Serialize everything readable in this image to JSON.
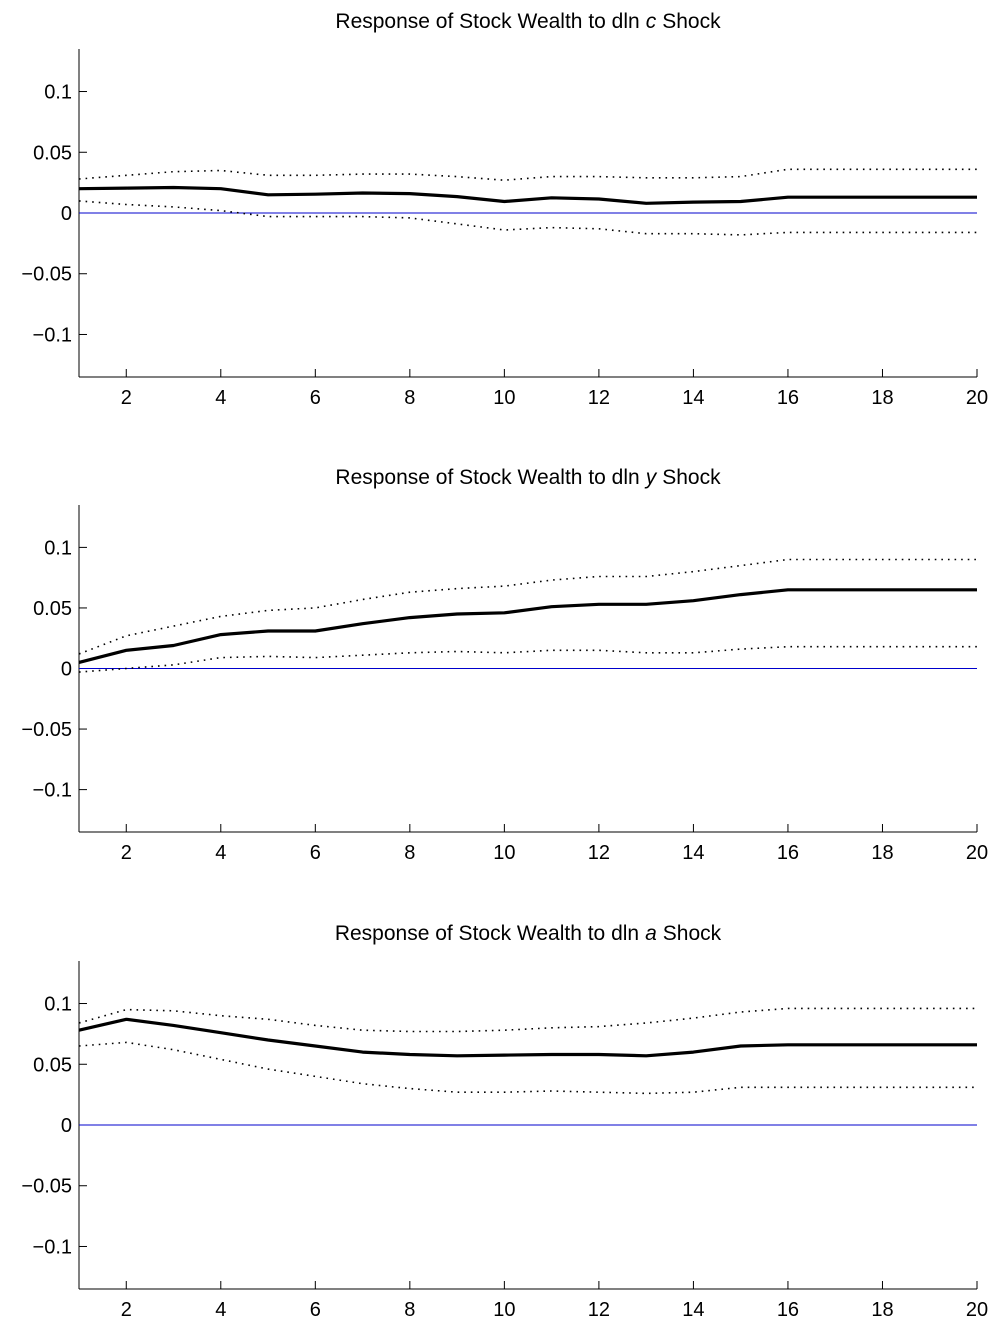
{
  "chart_data": [
    {
      "type": "line",
      "title": "Response of Stock Wealth to dln",
      "title_var": "c",
      "title_suffix": "Shock",
      "xlim": [
        1,
        20
      ],
      "ylim": [
        -0.135,
        0.135
      ],
      "xticks": [
        2,
        4,
        6,
        8,
        10,
        12,
        14,
        16,
        18,
        20
      ],
      "yticks": [
        0.1,
        0.05,
        0,
        -0.05,
        -0.1
      ],
      "ytick_labels": [
        "0.1",
        "0.05",
        "0",
        "−0.05",
        "−0.1"
      ],
      "grid": false,
      "x": [
        1,
        2,
        3,
        4,
        5,
        6,
        7,
        8,
        9,
        10,
        11,
        12,
        13,
        14,
        15,
        16,
        17,
        18,
        19,
        20
      ],
      "series": [
        {
          "role": "response",
          "style": "solid-thick",
          "values": [
            0.02,
            0.0205,
            0.021,
            0.02,
            0.015,
            0.0155,
            0.0165,
            0.016,
            0.0135,
            0.0095,
            0.0125,
            0.0115,
            0.008,
            0.009,
            0.0095,
            0.013,
            0.013,
            0.013,
            0.013,
            0.013
          ]
        },
        {
          "role": "upper",
          "style": "dotted",
          "values": [
            0.028,
            0.031,
            0.034,
            0.035,
            0.031,
            0.031,
            0.032,
            0.032,
            0.03,
            0.027,
            0.03,
            0.03,
            0.029,
            0.029,
            0.03,
            0.036,
            0.036,
            0.036,
            0.036,
            0.036
          ]
        },
        {
          "role": "lower",
          "style": "dotted",
          "values": [
            0.01,
            0.007,
            0.005,
            0.002,
            -0.003,
            -0.003,
            -0.003,
            -0.004,
            -0.009,
            -0.014,
            -0.012,
            -0.013,
            -0.017,
            -0.017,
            -0.018,
            -0.016,
            -0.016,
            -0.016,
            -0.016,
            -0.016
          ]
        },
        {
          "role": "zero",
          "style": "solid-thin-blue",
          "color": "#0000cc",
          "values": [
            0,
            0,
            0,
            0,
            0,
            0,
            0,
            0,
            0,
            0,
            0,
            0,
            0,
            0,
            0,
            0,
            0,
            0,
            0,
            0
          ]
        }
      ]
    },
    {
      "type": "line",
      "title": "Response of Stock Wealth to dln",
      "title_var": "y",
      "title_suffix": "Shock",
      "xlim": [
        1,
        20
      ],
      "ylim": [
        -0.135,
        0.135
      ],
      "xticks": [
        2,
        4,
        6,
        8,
        10,
        12,
        14,
        16,
        18,
        20
      ],
      "yticks": [
        0.1,
        0.05,
        0,
        -0.05,
        -0.1
      ],
      "ytick_labels": [
        "0.1",
        "0.05",
        "0",
        "−0.05",
        "−0.1"
      ],
      "grid": false,
      "x": [
        1,
        2,
        3,
        4,
        5,
        6,
        7,
        8,
        9,
        10,
        11,
        12,
        13,
        14,
        15,
        16,
        17,
        18,
        19,
        20
      ],
      "series": [
        {
          "role": "response",
          "style": "solid-thick",
          "values": [
            0.005,
            0.015,
            0.019,
            0.028,
            0.031,
            0.031,
            0.037,
            0.042,
            0.045,
            0.046,
            0.051,
            0.053,
            0.053,
            0.056,
            0.061,
            0.065,
            0.065,
            0.065,
            0.065,
            0.065
          ]
        },
        {
          "role": "upper",
          "style": "dotted",
          "values": [
            0.012,
            0.027,
            0.035,
            0.043,
            0.048,
            0.05,
            0.057,
            0.063,
            0.066,
            0.068,
            0.073,
            0.076,
            0.076,
            0.08,
            0.085,
            0.09,
            0.09,
            0.09,
            0.09,
            0.09
          ]
        },
        {
          "role": "lower",
          "style": "dotted",
          "values": [
            -0.003,
            0.0,
            0.003,
            0.009,
            0.01,
            0.009,
            0.011,
            0.013,
            0.014,
            0.013,
            0.015,
            0.015,
            0.013,
            0.013,
            0.016,
            0.018,
            0.018,
            0.018,
            0.018,
            0.018
          ]
        },
        {
          "role": "zero",
          "style": "solid-thin-blue",
          "color": "#0000cc",
          "values": [
            0,
            0,
            0,
            0,
            0,
            0,
            0,
            0,
            0,
            0,
            0,
            0,
            0,
            0,
            0,
            0,
            0,
            0,
            0,
            0
          ]
        }
      ]
    },
    {
      "type": "line",
      "title": "Response of Stock Wealth to dln",
      "title_var": "a",
      "title_suffix": "Shock",
      "xlim": [
        1,
        20
      ],
      "ylim": [
        -0.135,
        0.135
      ],
      "xticks": [
        2,
        4,
        6,
        8,
        10,
        12,
        14,
        16,
        18,
        20
      ],
      "yticks": [
        0.1,
        0.05,
        0,
        -0.05,
        -0.1
      ],
      "ytick_labels": [
        "0.1",
        "0.05",
        "0",
        "−0.05",
        "−0.1"
      ],
      "grid": false,
      "x": [
        1,
        2,
        3,
        4,
        5,
        6,
        7,
        8,
        9,
        10,
        11,
        12,
        13,
        14,
        15,
        16,
        17,
        18,
        19,
        20
      ],
      "series": [
        {
          "role": "response",
          "style": "solid-thick",
          "values": [
            0.078,
            0.087,
            0.082,
            0.076,
            0.07,
            0.065,
            0.06,
            0.058,
            0.057,
            0.0575,
            0.058,
            0.058,
            0.057,
            0.06,
            0.065,
            0.066,
            0.066,
            0.066,
            0.066,
            0.066
          ]
        },
        {
          "role": "upper",
          "style": "dotted",
          "values": [
            0.084,
            0.095,
            0.094,
            0.09,
            0.087,
            0.082,
            0.078,
            0.077,
            0.077,
            0.078,
            0.08,
            0.081,
            0.084,
            0.088,
            0.093,
            0.096,
            0.096,
            0.096,
            0.096,
            0.096
          ]
        },
        {
          "role": "lower",
          "style": "dotted",
          "values": [
            0.065,
            0.068,
            0.062,
            0.054,
            0.046,
            0.04,
            0.034,
            0.03,
            0.027,
            0.027,
            0.028,
            0.027,
            0.026,
            0.027,
            0.031,
            0.031,
            0.031,
            0.031,
            0.031,
            0.031
          ]
        },
        {
          "role": "zero",
          "style": "solid-thin-blue",
          "color": "#0000cc",
          "values": [
            0,
            0,
            0,
            0,
            0,
            0,
            0,
            0,
            0,
            0,
            0,
            0,
            0,
            0,
            0,
            0,
            0,
            0,
            0,
            0
          ]
        }
      ]
    }
  ]
}
